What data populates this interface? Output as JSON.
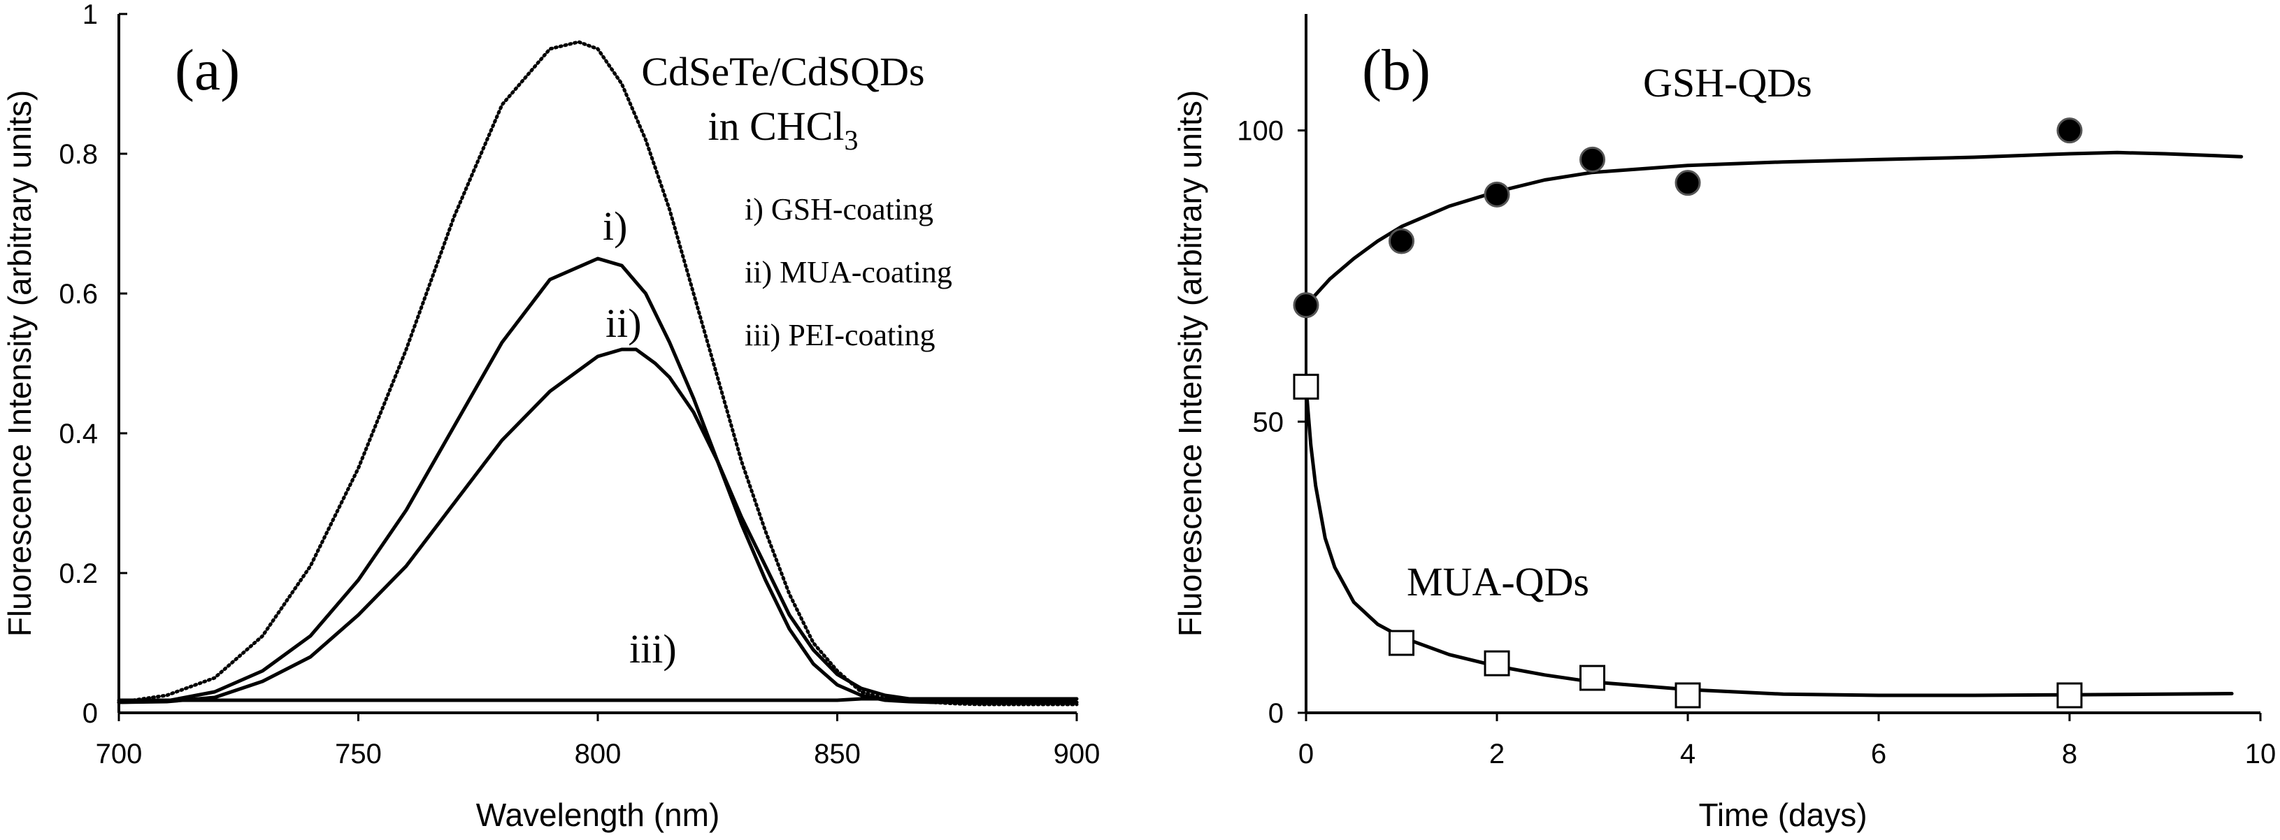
{
  "chart_data": [
    {
      "type": "line",
      "panel_label": "(a)",
      "xlabel": "Wavelength (nm)",
      "ylabel": "Fluorescence Intensity (arbitrary units)",
      "xlim": [
        700,
        900
      ],
      "ylim": [
        0,
        1
      ],
      "x_ticks": [
        "700",
        "750",
        "800",
        "850",
        "900"
      ],
      "y_ticks": [
        "0",
        "0.2",
        "0.4",
        "0.6",
        "0.8",
        "1"
      ],
      "annotation_title": "CdSeTe/CdSQDs",
      "annotation_sub_prefix": "in CHCl",
      "annotation_sub_subscript": "3",
      "legend_items": [
        "i) GSH-coating",
        "ii) MUA-coating",
        "iii) PEI-coating"
      ],
      "series": [
        {
          "name": "CdSeTe/CdSQDs in CHCl3",
          "style": "dotted",
          "x": [
            700,
            710,
            720,
            730,
            740,
            750,
            760,
            770,
            780,
            790,
            796,
            800,
            805,
            810,
            815,
            820,
            825,
            830,
            835,
            840,
            845,
            850,
            855,
            860,
            865,
            870,
            875,
            880,
            890,
            900
          ],
          "y": [
            0.015,
            0.025,
            0.05,
            0.11,
            0.21,
            0.35,
            0.52,
            0.71,
            0.87,
            0.95,
            0.96,
            0.95,
            0.9,
            0.82,
            0.72,
            0.6,
            0.48,
            0.36,
            0.26,
            0.17,
            0.1,
            0.06,
            0.03,
            0.02,
            0.018,
            0.015,
            0.013,
            0.012,
            0.012,
            0.012
          ]
        },
        {
          "name": "i) GSH-coating",
          "style": "solid",
          "label": "i)",
          "x": [
            700,
            710,
            720,
            730,
            740,
            750,
            760,
            770,
            780,
            790,
            800,
            805,
            810,
            815,
            820,
            825,
            830,
            835,
            840,
            845,
            850,
            855,
            860,
            865,
            870,
            875,
            880,
            890,
            900
          ],
          "y": [
            0.015,
            0.017,
            0.03,
            0.06,
            0.11,
            0.19,
            0.29,
            0.41,
            0.53,
            0.62,
            0.65,
            0.64,
            0.6,
            0.53,
            0.45,
            0.36,
            0.27,
            0.19,
            0.12,
            0.07,
            0.04,
            0.025,
            0.018,
            0.016,
            0.015,
            0.015,
            0.015,
            0.015,
            0.015
          ]
        },
        {
          "name": "ii) MUA-coating",
          "style": "solid",
          "label": "ii)",
          "x": [
            700,
            710,
            720,
            730,
            740,
            750,
            760,
            770,
            780,
            790,
            800,
            805,
            808,
            812,
            815,
            820,
            825,
            830,
            835,
            840,
            845,
            850,
            855,
            860,
            865,
            870,
            875,
            880,
            890,
            900
          ],
          "y": [
            0.015,
            0.016,
            0.022,
            0.045,
            0.08,
            0.14,
            0.21,
            0.3,
            0.39,
            0.46,
            0.51,
            0.52,
            0.52,
            0.5,
            0.48,
            0.43,
            0.36,
            0.28,
            0.21,
            0.14,
            0.09,
            0.055,
            0.035,
            0.025,
            0.02,
            0.017,
            0.016,
            0.015,
            0.015,
            0.015
          ]
        },
        {
          "name": "iii) PEI-coating",
          "style": "solid",
          "label": "iii)",
          "x": [
            700,
            750,
            800,
            850,
            855,
            900
          ],
          "y": [
            0.018,
            0.018,
            0.018,
            0.018,
            0.02,
            0.02
          ]
        }
      ]
    },
    {
      "type": "scatter",
      "panel_label": "(b)",
      "xlabel": "Time (days)",
      "ylabel": "Fluorescence Intensity (arbitrary units)",
      "xlim": [
        0,
        10
      ],
      "ylim": [
        0,
        120
      ],
      "x_ticks": [
        "0",
        "2",
        "4",
        "6",
        "8",
        "10"
      ],
      "y_ticks": [
        "0",
        "50",
        "100"
      ],
      "series": [
        {
          "name": "GSH-QDs",
          "marker": "filled-circle",
          "x": [
            0,
            1,
            2,
            3,
            4,
            8
          ],
          "y": [
            70,
            81,
            89,
            95,
            91,
            100
          ],
          "fit": {
            "x": [
              0,
              0.25,
              0.5,
              0.75,
              1,
              1.5,
              2,
              2.5,
              3,
              4,
              5,
              6,
              7,
              8,
              8.5,
              9,
              9.8
            ],
            "y": [
              70,
              74.5,
              78,
              81,
              83.5,
              87,
              89.5,
              91.5,
              92.8,
              94,
              94.6,
              95,
              95.4,
              96,
              96.2,
              96,
              95.5
            ]
          }
        },
        {
          "name": "MUA-QDs",
          "marker": "open-square",
          "x": [
            0,
            1,
            2,
            3,
            4,
            8
          ],
          "y": [
            56,
            12,
            8.5,
            6,
            3,
            3
          ],
          "fit": {
            "x": [
              0,
              0.05,
              0.1,
              0.2,
              0.3,
              0.5,
              0.75,
              1,
              1.5,
              2,
              2.5,
              3,
              4,
              5,
              6,
              7,
              8,
              9,
              9.7
            ],
            "y": [
              56,
              46,
              39,
              30,
              25,
              19,
              15.2,
              13,
              10,
              8,
              6.5,
              5.3,
              4,
              3.2,
              3,
              3,
              3.1,
              3.2,
              3.3
            ]
          }
        }
      ]
    }
  ]
}
